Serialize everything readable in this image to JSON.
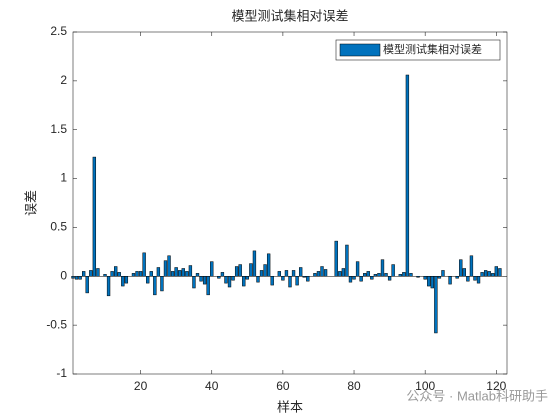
{
  "chart_data": {
    "type": "bar",
    "title": "模型测试集相对误差",
    "xlabel": "样本",
    "ylabel": "误差",
    "legend": "northeast",
    "watermark": "公众号 · Matlab科研助手",
    "series": [
      {
        "name": "模型测试集相对误差",
        "color": "#0072bd",
        "x": [
          1,
          2,
          3,
          4,
          5,
          6,
          7,
          8,
          9,
          10,
          11,
          12,
          13,
          14,
          15,
          16,
          17,
          18,
          19,
          20,
          21,
          22,
          23,
          24,
          25,
          26,
          27,
          28,
          29,
          30,
          31,
          32,
          33,
          34,
          35,
          36,
          37,
          38,
          39,
          40,
          41,
          42,
          43,
          44,
          45,
          46,
          47,
          48,
          49,
          50,
          51,
          52,
          53,
          54,
          55,
          56,
          57,
          58,
          59,
          60,
          61,
          62,
          63,
          64,
          65,
          66,
          67,
          68,
          69,
          70,
          71,
          72,
          73,
          74,
          75,
          76,
          77,
          78,
          79,
          80,
          81,
          82,
          83,
          84,
          85,
          86,
          87,
          88,
          89,
          90,
          91,
          92,
          93,
          94,
          95,
          96,
          97,
          98,
          99,
          100,
          101,
          102,
          103,
          104,
          105,
          106,
          107,
          108,
          109,
          110,
          111,
          112,
          113,
          114,
          115,
          116,
          117,
          118,
          119,
          120,
          121,
          122
        ],
        "values": [
          -0.02,
          -0.03,
          -0.03,
          0.05,
          -0.17,
          0.06,
          1.22,
          0.08,
          0.0,
          0.02,
          -0.2,
          0.05,
          0.1,
          0.04,
          -0.1,
          -0.07,
          0.0,
          0.03,
          0.05,
          0.05,
          0.24,
          -0.07,
          0.05,
          -0.19,
          0.09,
          -0.15,
          0.16,
          0.21,
          0.05,
          0.09,
          0.06,
          0.08,
          0.05,
          0.11,
          -0.12,
          0.03,
          -0.05,
          -0.08,
          -0.19,
          0.15,
          0.0,
          -0.02,
          0.04,
          -0.07,
          -0.11,
          -0.04,
          0.1,
          0.12,
          -0.1,
          -0.03,
          0.13,
          0.26,
          -0.06,
          0.06,
          0.12,
          0.23,
          -0.09,
          0.0,
          0.05,
          -0.04,
          0.06,
          -0.11,
          0.06,
          -0.09,
          0.09,
          -0.01,
          -0.05,
          0.0,
          0.03,
          0.05,
          0.1,
          0.07,
          0.0,
          0.0,
          0.36,
          0.05,
          0.08,
          0.32,
          -0.06,
          -0.03,
          0.15,
          -0.05,
          0.03,
          0.05,
          -0.03,
          0.02,
          0.03,
          0.17,
          0.03,
          -0.04,
          0.12,
          0.0,
          0.02,
          0.04,
          2.06,
          0.03,
          0.0,
          -0.01,
          0.0,
          -0.03,
          -0.1,
          -0.12,
          -0.58,
          -0.02,
          0.06,
          0.0,
          -0.08,
          0.0,
          -0.02,
          0.17,
          0.08,
          -0.05,
          0.21,
          -0.04,
          -0.07,
          0.04,
          0.06,
          0.05,
          0.03,
          0.1,
          0.08,
          0.0
        ]
      }
    ],
    "xlim": [
      1,
      123
    ],
    "xticks": [
      20,
      40,
      60,
      80,
      100,
      120
    ],
    "ylim": [
      -1,
      2.5
    ],
    "yticks": [
      -1,
      -0.5,
      0,
      0.5,
      1,
      1.5,
      2,
      2.5
    ]
  }
}
